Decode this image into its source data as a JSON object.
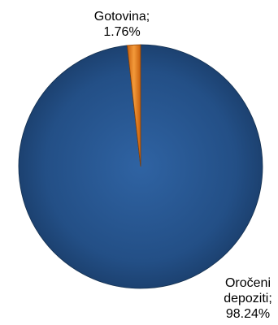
{
  "chart_data": {
    "type": "pie",
    "title": "",
    "slices": [
      {
        "label": "Oročeni depoziti",
        "value": 98.24,
        "label_lines": [
          "Oročeni",
          "depoziti;",
          "98.24%"
        ],
        "color": "#1f4e86"
      },
      {
        "label": "Gotovina",
        "value": 1.76,
        "label_lines": [
          "Gotovina;",
          "1.76%"
        ],
        "color": "#f07e1a"
      }
    ],
    "legend": "none",
    "data_labels": "outside"
  }
}
